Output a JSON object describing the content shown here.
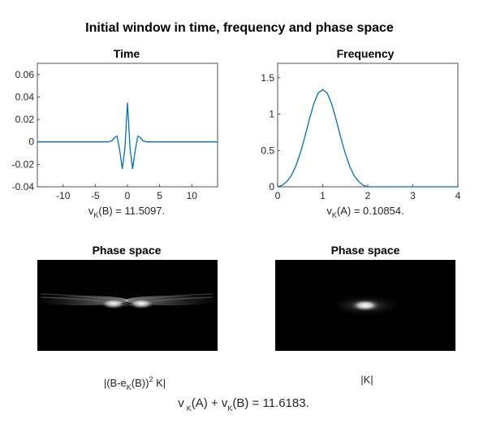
{
  "figure": {
    "title": "Initial window in time, frequency and phase space"
  },
  "chart_data": [
    {
      "type": "line",
      "title": "Time",
      "xlim": [
        -14,
        14
      ],
      "ylim": [
        -0.04,
        0.07
      ],
      "xticks": [
        "-10",
        "-5",
        "0",
        "5",
        "10"
      ],
      "yticks": [
        "0.06",
        "0.04",
        "0.02",
        "0",
        "-0.02",
        "-0.04"
      ],
      "grid": false,
      "series": [
        {
          "color": "#0072BD",
          "x": [
            -14,
            -3,
            -2.4,
            -2.0,
            -1.6,
            -1.2,
            -0.8,
            -0.4,
            0,
            0.4,
            0.8,
            1.2,
            1.6,
            2.0,
            2.4,
            3,
            14
          ],
          "y": [
            0,
            0,
            0.001,
            0.004,
            0.005,
            -0.008,
            -0.024,
            -0.006,
            0.035,
            -0.006,
            -0.024,
            -0.008,
            0.005,
            0.004,
            0.001,
            0,
            0
          ]
        }
      ],
      "caption": {
        "pre": "v",
        "sub": "K",
        "post": "(B) = 11.5097."
      }
    },
    {
      "type": "line",
      "title": "Frequency",
      "xlim": [
        0,
        4
      ],
      "ylim": [
        0,
        1.7
      ],
      "xticks": [
        "0",
        "1",
        "2",
        "3",
        "4"
      ],
      "yticks": [
        "1.5",
        "1",
        "0.5",
        "0"
      ],
      "grid": false,
      "series": [
        {
          "color": "#0072BD",
          "x": [
            0,
            0.1,
            0.2,
            0.3,
            0.4,
            0.5,
            0.6,
            0.7,
            0.8,
            0.9,
            1.0,
            1.1,
            1.2,
            1.3,
            1.4,
            1.5,
            1.6,
            1.7,
            1.8,
            1.9,
            2.0,
            4.0
          ],
          "y": [
            0,
            0.02,
            0.07,
            0.15,
            0.28,
            0.46,
            0.68,
            0.92,
            1.14,
            1.29,
            1.34,
            1.29,
            1.14,
            0.92,
            0.68,
            0.46,
            0.28,
            0.15,
            0.07,
            0.02,
            0,
            0
          ]
        }
      ],
      "caption": {
        "pre": "v",
        "sub": "K",
        "post": "(A) = 0.10854."
      }
    },
    {
      "type": "heatmap",
      "title": "Phase space",
      "colormap": "gray",
      "caption": "|(B-e",
      "caption_sub": "K",
      "caption_post": "(B))",
      "caption_sup": "2",
      "caption_end": " K|"
    },
    {
      "type": "heatmap",
      "title": "Phase space",
      "colormap": "gray",
      "caption": "|K|"
    }
  ],
  "summary": {
    "pre1": "v",
    "sub1": "K",
    "mid": "(A) + v",
    "sub2": "K",
    "post": "(B) = 11.6183."
  }
}
